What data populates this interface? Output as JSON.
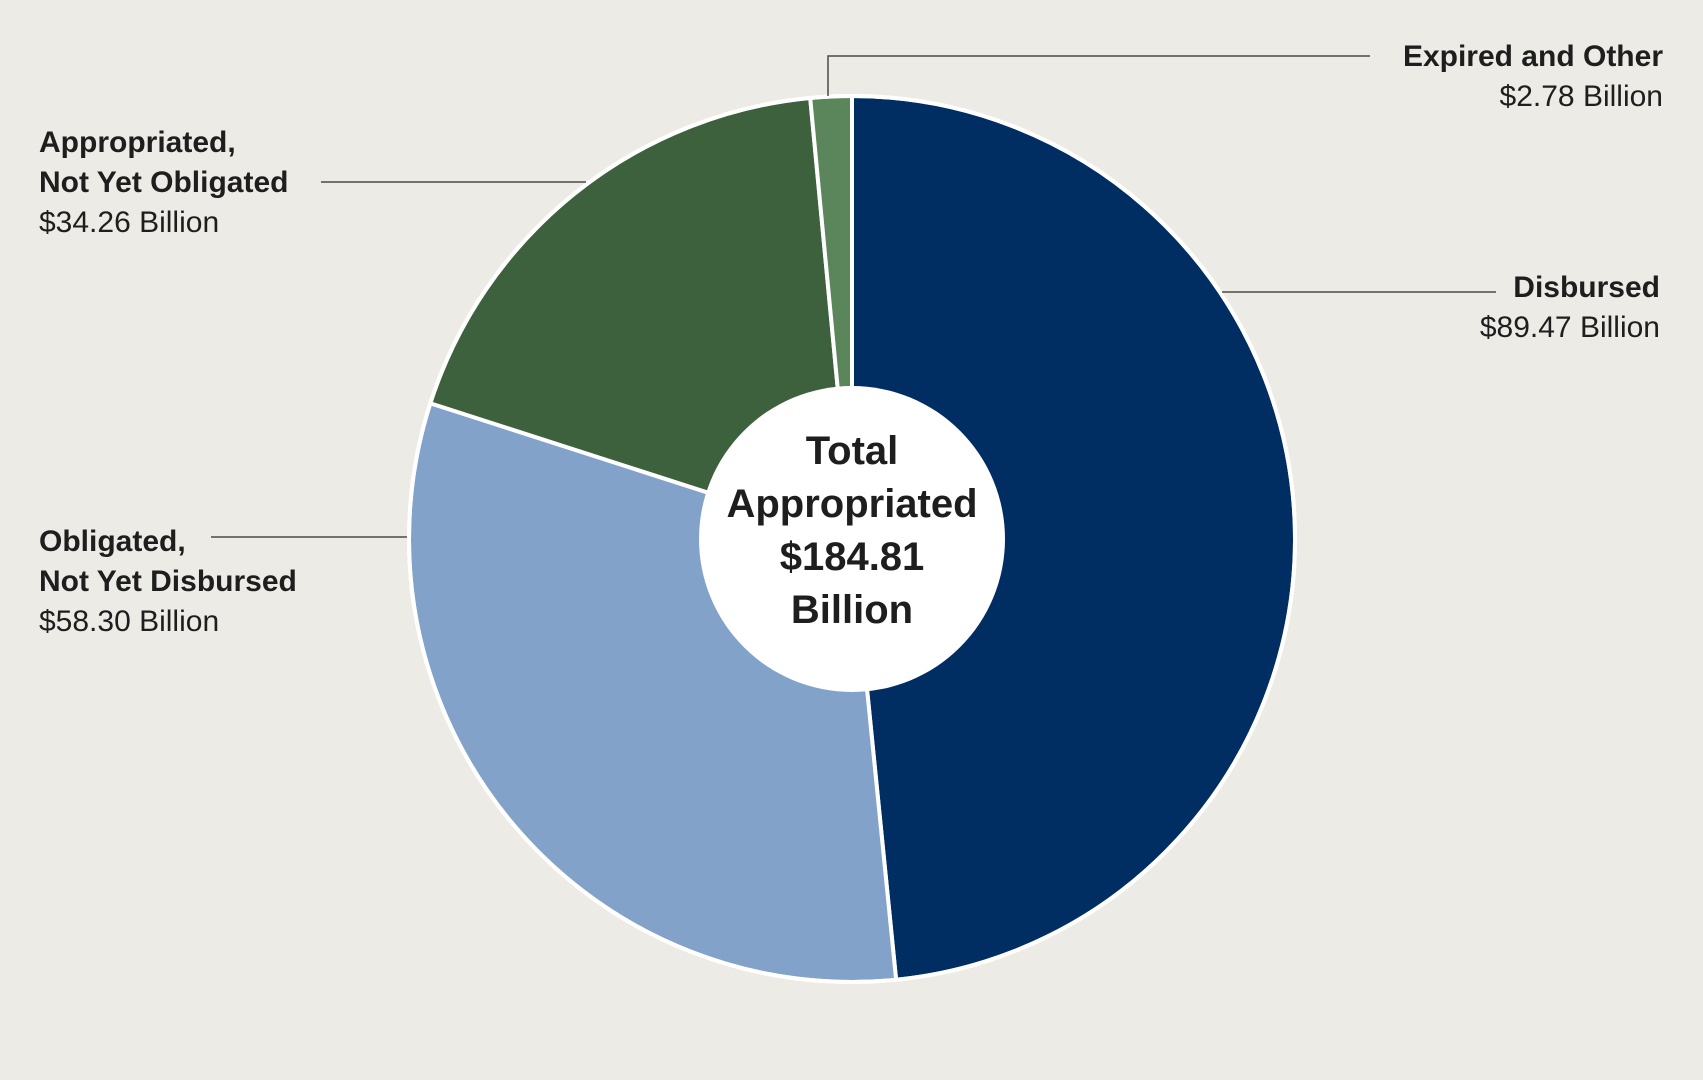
{
  "chart_data": {
    "type": "pie",
    "donut": true,
    "center_label": {
      "line1": "Total",
      "line2": "Appropriated",
      "line3": "$184.81",
      "line4": "Billion"
    },
    "total": 184.81,
    "slices": [
      {
        "name": "Disbursed",
        "value_label": "$89.47 Billion",
        "value": 89.47,
        "color": "#002d62"
      },
      {
        "name": "Obligated,\nNot Yet Disbursed",
        "value_label": "$58.30 Billion",
        "value": 58.3,
        "color": "#82a2ca"
      },
      {
        "name": "Appropriated,\nNot Yet Obligated",
        "value_label": "$34.26 Billion",
        "value": 34.26,
        "color": "#3d603d"
      },
      {
        "name": "Expired and Other",
        "value_label": "$2.78 Billion",
        "value": 2.78,
        "color": "#5b855b"
      }
    ],
    "legend": "none",
    "grid": false
  }
}
